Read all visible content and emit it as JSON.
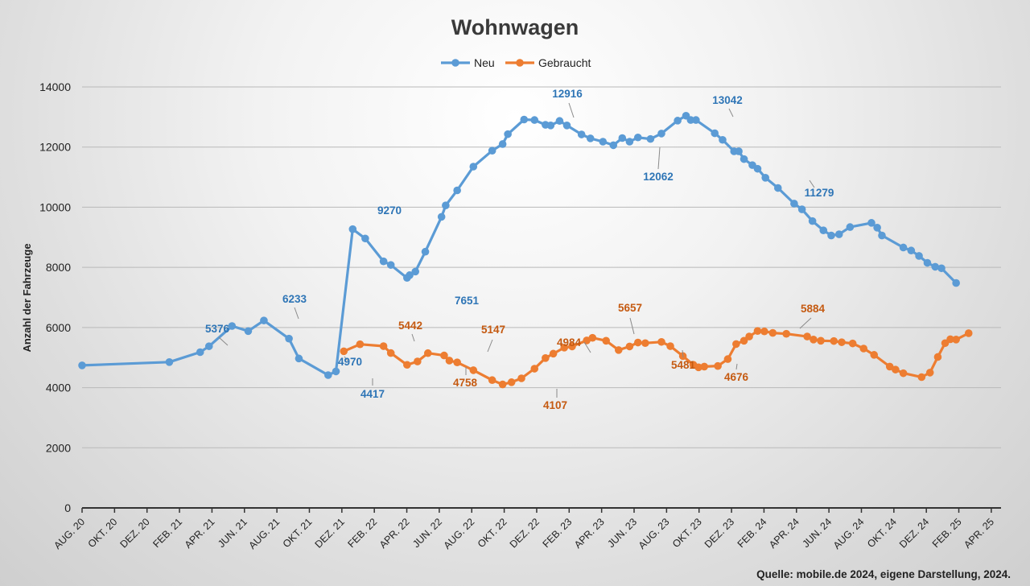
{
  "chart_data": {
    "type": "line",
    "title": "Wohnwagen",
    "ylabel": "Anzahl der Fahrzeuge",
    "xlabel": "",
    "ylim": [
      0,
      14000
    ],
    "yticks": [
      0,
      2000,
      4000,
      6000,
      8000,
      10000,
      12000,
      14000
    ],
    "grid": true,
    "legend": "top-center",
    "source": "Quelle: mobile.de 2024, eigene Darstellung, 2024.",
    "x_tick_labels": [
      "AUG. 20",
      "OKT. 20",
      "DEZ. 20",
      "FEB. 21",
      "APR. 21",
      "JUN. 21",
      "AUG. 21",
      "OKT. 21",
      "DEZ. 21",
      "FEB. 22",
      "APR. 22",
      "JUN. 22",
      "AUG. 22",
      "OKT. 22",
      "DEZ. 22",
      "FEB. 23",
      "APR. 23",
      "JUN. 23",
      "AUG. 23",
      "OKT. 23",
      "DEZ. 23",
      "FEB. 24",
      "APR. 24",
      "JUN. 24",
      "AUG. 24",
      "OKT. 24",
      "DEZ. 24",
      "FEB. 25",
      "APR. 25"
    ],
    "x_axis_start": "2020-08-01",
    "x_axis_end": "2025-05-26",
    "series": [
      {
        "name": "Neu",
        "color": "#5b9bd5",
        "points": [
          [
            "2020-08-01",
            4740
          ],
          [
            "2021-01-15",
            4850
          ],
          [
            "2021-03-15",
            5180
          ],
          [
            "2021-04-01",
            5376
          ],
          [
            "2021-05-15",
            6050
          ],
          [
            "2021-06-15",
            5880
          ],
          [
            "2021-07-15",
            6233
          ],
          [
            "2021-09-01",
            5630
          ],
          [
            "2021-09-20",
            4970
          ],
          [
            "2021-11-15",
            4417
          ],
          [
            "2021-11-30",
            4540
          ],
          [
            "2022-01-01",
            9270
          ],
          [
            "2022-01-25",
            8960
          ],
          [
            "2022-03-01",
            8200
          ],
          [
            "2022-03-15",
            8080
          ],
          [
            "2022-04-15",
            7651
          ],
          [
            "2022-04-20",
            7740
          ],
          [
            "2022-05-01",
            7860
          ],
          [
            "2022-05-20",
            8520
          ],
          [
            "2022-06-20",
            9680
          ],
          [
            "2022-06-28",
            10060
          ],
          [
            "2022-07-20",
            10560
          ],
          [
            "2022-08-20",
            11350
          ],
          [
            "2022-09-25",
            11880
          ],
          [
            "2022-10-15",
            12100
          ],
          [
            "2022-10-25",
            12430
          ],
          [
            "2022-11-25",
            12916
          ],
          [
            "2022-12-15",
            12900
          ],
          [
            "2023-01-05",
            12740
          ],
          [
            "2023-01-15",
            12720
          ],
          [
            "2023-02-01",
            12870
          ],
          [
            "2023-02-15",
            12720
          ],
          [
            "2023-03-15",
            12420
          ],
          [
            "2023-04-01",
            12290
          ],
          [
            "2023-04-25",
            12180
          ],
          [
            "2023-05-15",
            12062
          ],
          [
            "2023-06-01",
            12300
          ],
          [
            "2023-06-15",
            12180
          ],
          [
            "2023-07-01",
            12320
          ],
          [
            "2023-07-25",
            12270
          ],
          [
            "2023-08-15",
            12450
          ],
          [
            "2023-09-15",
            12880
          ],
          [
            "2023-10-01",
            13042
          ],
          [
            "2023-10-10",
            12900
          ],
          [
            "2023-10-20",
            12900
          ],
          [
            "2023-11-25",
            12460
          ],
          [
            "2023-12-10",
            12240
          ],
          [
            "2024-01-01",
            11860
          ],
          [
            "2024-01-10",
            11860
          ],
          [
            "2024-01-20",
            11600
          ],
          [
            "2024-02-05",
            11400
          ],
          [
            "2024-02-15",
            11279
          ],
          [
            "2024-03-01",
            10980
          ],
          [
            "2024-03-25",
            10640
          ],
          [
            "2024-04-25",
            10120
          ],
          [
            "2024-05-10",
            9930
          ],
          [
            "2024-05-30",
            9540
          ],
          [
            "2024-06-20",
            9230
          ],
          [
            "2024-07-05",
            9060
          ],
          [
            "2024-07-20",
            9100
          ],
          [
            "2024-08-10",
            9340
          ],
          [
            "2024-09-20",
            9480
          ],
          [
            "2024-10-01",
            9320
          ],
          [
            "2024-10-10",
            9060
          ],
          [
            "2024-11-20",
            8660
          ],
          [
            "2024-12-05",
            8560
          ],
          [
            "2024-12-20",
            8380
          ],
          [
            "2025-01-05",
            8150
          ],
          [
            "2025-01-20",
            8020
          ],
          [
            "2025-02-01",
            7970
          ],
          [
            "2025-03-01",
            7480
          ]
        ]
      },
      {
        "name": "Gebraucht",
        "color": "#ed7d31",
        "points": [
          [
            "2021-12-15",
            5210
          ],
          [
            "2022-01-15",
            5442
          ],
          [
            "2022-03-01",
            5380
          ],
          [
            "2022-03-15",
            5150
          ],
          [
            "2022-04-15",
            4758
          ],
          [
            "2022-05-05",
            4870
          ],
          [
            "2022-05-25",
            5147
          ],
          [
            "2022-06-25",
            5070
          ],
          [
            "2022-07-05",
            4900
          ],
          [
            "2022-07-20",
            4840
          ],
          [
            "2022-08-20",
            4580
          ],
          [
            "2022-09-25",
            4250
          ],
          [
            "2022-10-15",
            4107
          ],
          [
            "2022-11-01",
            4180
          ],
          [
            "2022-11-20",
            4310
          ],
          [
            "2022-12-15",
            4630
          ],
          [
            "2023-01-05",
            4984
          ],
          [
            "2023-01-20",
            5130
          ],
          [
            "2023-02-10",
            5330
          ],
          [
            "2023-02-25",
            5370
          ],
          [
            "2023-03-25",
            5570
          ],
          [
            "2023-04-05",
            5657
          ],
          [
            "2023-05-01",
            5560
          ],
          [
            "2023-05-25",
            5250
          ],
          [
            "2023-06-15",
            5370
          ],
          [
            "2023-07-01",
            5500
          ],
          [
            "2023-07-15",
            5481
          ],
          [
            "2023-08-15",
            5520
          ],
          [
            "2023-09-01",
            5380
          ],
          [
            "2023-09-25",
            5050
          ],
          [
            "2023-10-15",
            4760
          ],
          [
            "2023-10-25",
            4676
          ],
          [
            "2023-11-05",
            4700
          ],
          [
            "2023-12-01",
            4720
          ],
          [
            "2023-12-20",
            4950
          ],
          [
            "2024-01-05",
            5450
          ],
          [
            "2024-01-20",
            5560
          ],
          [
            "2024-01-30",
            5700
          ],
          [
            "2024-02-15",
            5884
          ],
          [
            "2024-02-28",
            5870
          ],
          [
            "2024-03-15",
            5820
          ],
          [
            "2024-04-10",
            5790
          ],
          [
            "2024-05-20",
            5700
          ],
          [
            "2024-06-01",
            5600
          ],
          [
            "2024-06-15",
            5560
          ],
          [
            "2024-07-10",
            5550
          ],
          [
            "2024-07-25",
            5510
          ],
          [
            "2024-08-15",
            5470
          ],
          [
            "2024-09-05",
            5300
          ],
          [
            "2024-09-25",
            5090
          ],
          [
            "2024-10-25",
            4700
          ],
          [
            "2024-11-05",
            4600
          ],
          [
            "2024-11-20",
            4480
          ],
          [
            "2024-12-25",
            4350
          ],
          [
            "2025-01-10",
            4500
          ],
          [
            "2025-01-25",
            5020
          ],
          [
            "2025-02-08",
            5480
          ],
          [
            "2025-02-18",
            5610
          ],
          [
            "2025-03-01",
            5600
          ],
          [
            "2025-03-25",
            5810
          ]
        ]
      }
    ],
    "data_labels": [
      {
        "series": "Neu",
        "text": "5376"
      },
      {
        "series": "Neu",
        "text": "6233"
      },
      {
        "series": "Neu",
        "text": "4970"
      },
      {
        "series": "Neu",
        "text": "4417"
      },
      {
        "series": "Neu",
        "text": "9270"
      },
      {
        "series": "Neu",
        "text": "7651"
      },
      {
        "series": "Neu",
        "text": "12916"
      },
      {
        "series": "Neu",
        "text": "12062"
      },
      {
        "series": "Neu",
        "text": "13042"
      },
      {
        "series": "Neu",
        "text": "11279"
      },
      {
        "series": "Gebraucht",
        "text": "5442"
      },
      {
        "series": "Gebraucht",
        "text": "4758"
      },
      {
        "series": "Gebraucht",
        "text": "5147"
      },
      {
        "series": "Gebraucht",
        "text": "4107"
      },
      {
        "series": "Gebraucht",
        "text": "4984"
      },
      {
        "series": "Gebraucht",
        "text": "5657"
      },
      {
        "series": "Gebraucht",
        "text": "5481"
      },
      {
        "series": "Gebraucht",
        "text": "4676"
      },
      {
        "series": "Gebraucht",
        "text": "5884"
      }
    ]
  }
}
